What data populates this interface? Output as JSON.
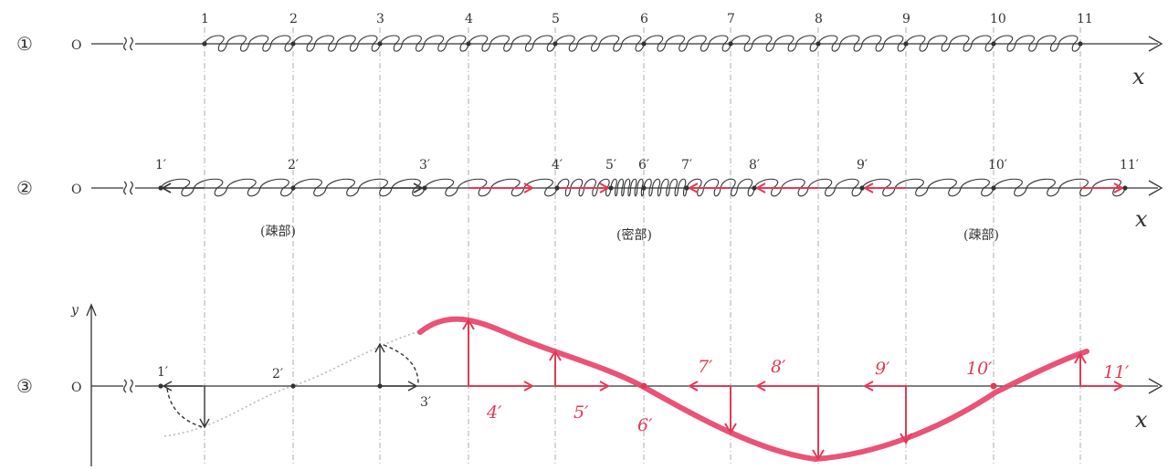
{
  "row_labels": [
    "①",
    "②",
    "③"
  ],
  "origin_label": "O",
  "axis_x_label": "x",
  "axis_y_label": "y",
  "row1_points": [
    "1",
    "2",
    "3",
    "4",
    "5",
    "6",
    "7",
    "8",
    "9",
    "10",
    "11"
  ],
  "row2_points": [
    "1′",
    "2′",
    "3′",
    "4′",
    "5′",
    "6′",
    "7′",
    "8′",
    "9′",
    "10′",
    "11′"
  ],
  "row3_black_points": [
    "1′",
    "2′",
    "3′"
  ],
  "row3_red_points": [
    "4′",
    "5′",
    "6′",
    "7′",
    "8′",
    "9′",
    "10′",
    "11′"
  ],
  "region_labels": [
    "(疎部)",
    "(密部)",
    "(疎部)"
  ],
  "colors": {
    "ink": "#333333",
    "red": "#e23a55",
    "redWave": "#e8446a",
    "grid": "#999999"
  }
}
